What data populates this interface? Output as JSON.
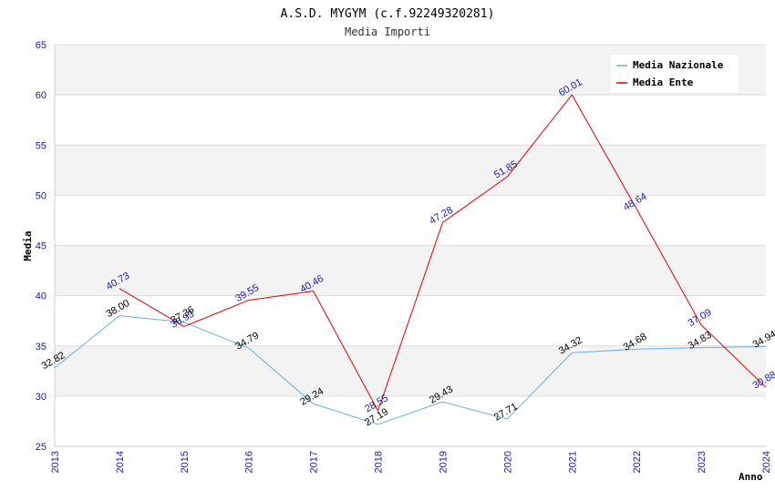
{
  "chart_data": {
    "type": "line",
    "title": "A.S.D. MYGYM (c.f.92249320281)",
    "subtitle": "Media Importi",
    "xlabel": "Anno",
    "ylabel": "Media",
    "x": [
      "2013",
      "2014",
      "2015",
      "2016",
      "2017",
      "2018",
      "2019",
      "2020",
      "2021",
      "2022",
      "2023",
      "2024"
    ],
    "ylim": [
      25,
      65
    ],
    "yticks": [
      25,
      30,
      35,
      40,
      45,
      50,
      55,
      60,
      65
    ],
    "grid": true,
    "legend_position": "top-right",
    "series": [
      {
        "name": "Media Nazionale",
        "color": "#6aaee8",
        "label_color": "#000000",
        "values": [
          32.82,
          38.0,
          37.36,
          34.79,
          29.24,
          27.19,
          29.43,
          27.71,
          34.32,
          34.68,
          34.83,
          34.94
        ],
        "labels": [
          "32.82",
          "38.00",
          "37.36",
          "34.79",
          "29.24",
          "27.19",
          "29.43",
          "27.71",
          "34.32",
          "34.68",
          "34.83",
          "34.94"
        ]
      },
      {
        "name": "Media Ente",
        "color": "#e00000",
        "label_color": "#1a1aa6",
        "values": [
          null,
          40.73,
          36.93,
          39.55,
          40.46,
          28.55,
          47.28,
          51.85,
          60.01,
          48.64,
          37.09,
          30.88
        ],
        "labels": [
          null,
          "40.73",
          "36.93",
          "39.55",
          "40.46",
          "28.55",
          "47.28",
          "51.85",
          "60.01",
          "48.64",
          "37.09",
          "30.88"
        ]
      }
    ]
  }
}
